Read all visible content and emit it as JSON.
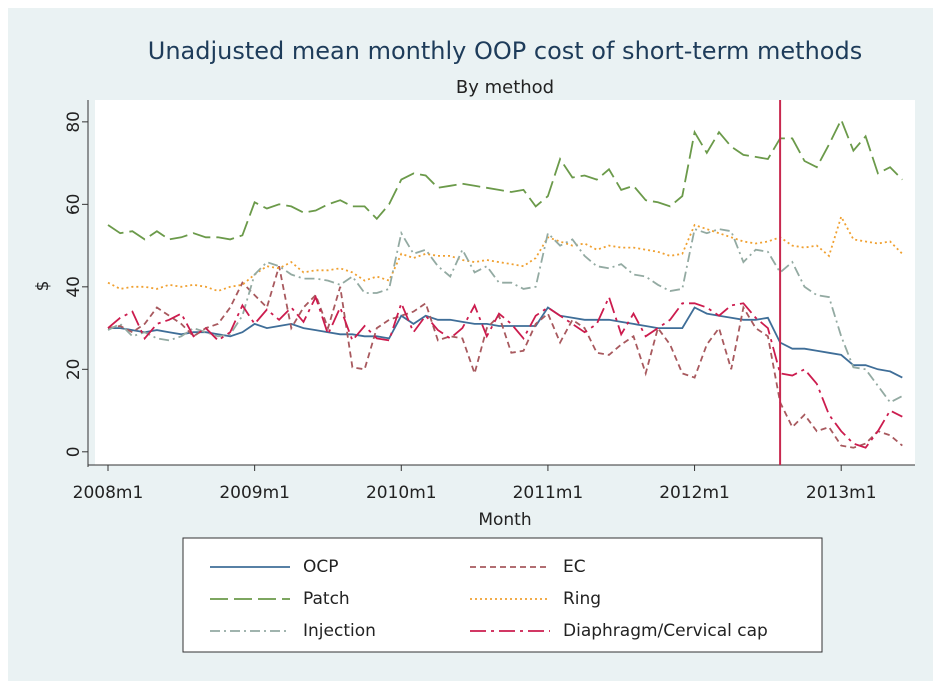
{
  "chart_data": {
    "type": "line",
    "title": "Unadjusted mean monthly OOP cost of short-term methods",
    "subtitle": "By method",
    "x_label": "Month",
    "y_label": "$",
    "categories": [
      "2008m1",
      null,
      null,
      null,
      null,
      null,
      null,
      null,
      null,
      null,
      null,
      null,
      "2009m1",
      null,
      null,
      null,
      null,
      null,
      null,
      null,
      null,
      null,
      null,
      null,
      "2010m1",
      null,
      null,
      null,
      null,
      null,
      null,
      null,
      null,
      null,
      null,
      null,
      "2011m1",
      null,
      null,
      null,
      null,
      null,
      null,
      null,
      null,
      null,
      null,
      null,
      "2012m1",
      null,
      null,
      null,
      null,
      null,
      null,
      null,
      null,
      null,
      null,
      null,
      "2013m1",
      null,
      null,
      null,
      null,
      null
    ],
    "ylim": [
      -3.2,
      85.3
    ],
    "yticks": [
      0,
      20,
      40,
      60,
      80
    ],
    "vline": {
      "x_index": 55,
      "color": "#c8284f"
    },
    "series": [
      {
        "name": "OCP",
        "color": "#3f6e98",
        "dash": "none",
        "values": [
          30,
          30,
          29.5,
          29,
          29.5,
          29,
          28.5,
          29,
          29,
          28.5,
          28,
          29,
          31,
          30,
          30.5,
          31,
          30,
          29.5,
          29,
          28.5,
          28.5,
          28,
          28,
          27.5,
          33,
          31,
          33,
          32,
          32,
          31.5,
          31,
          31,
          30.5,
          30.5,
          30.5,
          30.5,
          35,
          33,
          32.5,
          32,
          32,
          32,
          31.5,
          31,
          30.5,
          30,
          30,
          30,
          35,
          33.5,
          33,
          32.5,
          32,
          32,
          32.5,
          26.5,
          25,
          25,
          24.5,
          24,
          23.5,
          21,
          21,
          20,
          19.5,
          18
        ]
      },
      {
        "name": "EC",
        "color": "#a8595e",
        "dash": "6,4",
        "values": [
          30,
          30.5,
          29,
          31,
          35,
          33,
          31,
          28,
          30,
          31,
          35,
          41,
          38,
          35,
          45,
          30,
          35,
          38,
          30,
          40,
          20.5,
          20,
          30,
          32,
          33,
          34,
          36,
          27,
          28,
          27.5,
          19,
          30,
          33,
          24,
          24.5,
          31,
          33.5,
          26.5,
          32,
          30,
          24,
          23.5,
          26,
          28,
          19,
          30,
          26,
          19,
          18,
          26,
          30,
          20,
          35,
          30,
          28,
          12,
          6,
          9,
          5,
          6,
          1.5,
          1,
          2,
          5,
          4,
          1.5
        ]
      },
      {
        "name": "Patch",
        "color": "#6b9a4a",
        "dash": "18,6",
        "values": [
          55,
          53,
          53.5,
          51.5,
          53.5,
          51.5,
          52,
          53,
          52,
          52,
          51.5,
          52.5,
          60.5,
          59,
          60,
          59.5,
          58,
          58.5,
          60,
          61,
          59.5,
          59.5,
          56.5,
          60,
          66,
          67.5,
          67,
          64,
          64.5,
          65,
          64.5,
          64,
          63.5,
          63,
          63.5,
          59.5,
          62,
          71,
          66.5,
          67,
          66,
          68.5,
          63.5,
          64.5,
          61,
          60.5,
          59.5,
          62,
          77.5,
          72.5,
          77.5,
          74,
          72,
          71.5,
          71,
          76,
          76,
          70.5,
          69,
          74.5,
          80.5,
          73,
          76.5,
          67.5,
          69,
          66
        ]
      },
      {
        "name": "Ring",
        "color": "#f0a030",
        "dash": "2,3",
        "values": [
          41,
          39.5,
          40,
          40,
          39.5,
          40.5,
          40,
          40.5,
          40,
          39,
          40,
          40.5,
          43,
          45,
          44.5,
          46,
          43.5,
          44,
          44,
          44.5,
          43.5,
          41.5,
          42.5,
          41.5,
          48,
          47,
          48,
          47.5,
          47.5,
          46.5,
          46,
          46.5,
          46,
          45.5,
          45,
          47,
          52,
          51,
          50,
          50.5,
          49,
          50,
          49.5,
          49.5,
          49,
          48.5,
          47.5,
          48,
          55,
          54,
          53,
          52,
          51,
          50.5,
          51,
          52,
          50,
          49.5,
          50,
          47.5,
          57,
          51.5,
          51,
          50.5,
          51,
          48
        ]
      },
      {
        "name": "Injection",
        "color": "#93aaa2",
        "dash": "10,4,2,4",
        "values": [
          29.5,
          31,
          28,
          29,
          27.5,
          27,
          28,
          30,
          29,
          28,
          28.5,
          33,
          43,
          46,
          45,
          43,
          42,
          42,
          41.5,
          40.5,
          42.5,
          38.5,
          38.5,
          39.5,
          53,
          48,
          49,
          45,
          42.5,
          49,
          43.5,
          45,
          41,
          41,
          39.5,
          40,
          53,
          50,
          51.5,
          47.5,
          45,
          44.5,
          45.5,
          43,
          42.5,
          40.5,
          39,
          39.5,
          54,
          53,
          54,
          53.5,
          46,
          49,
          48.5,
          43.5,
          46,
          40,
          38,
          37.5,
          28,
          20.5,
          20,
          16,
          12,
          13.5
        ]
      },
      {
        "name": "Diaphragm/Cervical cap",
        "color": "#cc1c4e",
        "dash": "16,5,3,5",
        "values": [
          30,
          32.5,
          34,
          27.5,
          31,
          32,
          33.5,
          28,
          30,
          27,
          29,
          35.5,
          31,
          34.5,
          32,
          35,
          31.5,
          37.5,
          28.5,
          35,
          27,
          30.5,
          27.5,
          27,
          36,
          29,
          33,
          29.5,
          27.5,
          30,
          35.5,
          28,
          33.5,
          31,
          27.5,
          33,
          35,
          33,
          31,
          29,
          31,
          37.5,
          28.5,
          33.5,
          28,
          30,
          32,
          36,
          36,
          35,
          33,
          35.5,
          36,
          32.5,
          30,
          19,
          18.5,
          20,
          16.5,
          9,
          5,
          2,
          1,
          5,
          10,
          8.5
        ]
      }
    ]
  }
}
